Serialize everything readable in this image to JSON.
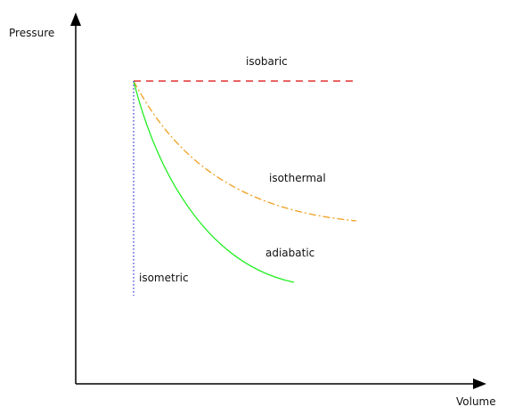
{
  "axes": {
    "y_label": "Pressure",
    "x_label": "Volume",
    "color": "#000000"
  },
  "processes": [
    {
      "name": "isobaric",
      "label": "isobaric",
      "color": "#e03030",
      "line_style": "dashed"
    },
    {
      "name": "isothermal",
      "label": "isothermal",
      "color": "#f0a020",
      "line_style": "dash-dot"
    },
    {
      "name": "adiabatic",
      "label": "adiabatic",
      "color": "#22ee22",
      "line_style": "solid"
    },
    {
      "name": "isometric",
      "label": "isometric",
      "color": "#5555dd",
      "line_style": "dotted"
    }
  ]
}
